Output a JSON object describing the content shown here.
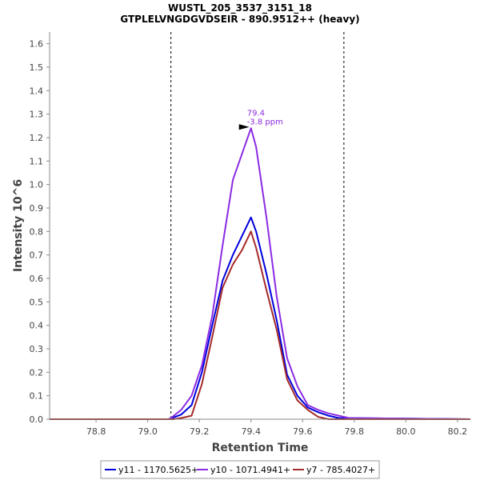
{
  "chart_data": {
    "type": "line",
    "title": "WUSTL_205_3537_3151_18",
    "subtitle": "GTPLELVNGDGVDSEIR - 890.9512++ (heavy)",
    "xlabel": "Retention Time",
    "ylabel": "Intensity 10^6",
    "xlim": [
      78.62,
      80.25
    ],
    "ylim": [
      0,
      1.65
    ],
    "xticks": [
      "78.8",
      "79.0",
      "79.2",
      "79.4",
      "79.6",
      "79.8",
      "80.0",
      "80.2"
    ],
    "yticks": [
      "0.0",
      "0.1",
      "0.2",
      "0.3",
      "0.4",
      "0.5",
      "0.6",
      "0.7",
      "0.8",
      "0.9",
      "1.0",
      "1.1",
      "1.2",
      "1.3",
      "1.4",
      "1.5",
      "1.6"
    ],
    "grid": false,
    "legend_position": "bottom",
    "boundaries": [
      79.09,
      79.76
    ],
    "annotation": {
      "line1": "79.4",
      "line2": "-3.8 ppm",
      "x": 79.4,
      "y": 1.24,
      "color": "#8B2BE2"
    },
    "series": [
      {
        "name": "y11 - 1170.5625+",
        "color": "#0000DD",
        "x": [
          78.62,
          79.08,
          79.09,
          79.13,
          79.17,
          79.21,
          79.25,
          79.29,
          79.33,
          79.365,
          79.4,
          79.42,
          79.46,
          79.5,
          79.54,
          79.58,
          79.62,
          79.66,
          79.7,
          79.74,
          80.25
        ],
        "y": [
          0.0,
          0.0,
          0.003,
          0.02,
          0.06,
          0.2,
          0.4,
          0.59,
          0.7,
          0.78,
          0.86,
          0.8,
          0.62,
          0.42,
          0.19,
          0.1,
          0.05,
          0.03,
          0.015,
          0.005,
          0.0
        ]
      },
      {
        "name": "y10 - 1071.4941+",
        "color": "#8B2BE2",
        "x": [
          78.62,
          79.08,
          79.09,
          79.13,
          79.17,
          79.21,
          79.25,
          79.29,
          79.33,
          79.365,
          79.4,
          79.42,
          79.46,
          79.5,
          79.54,
          79.58,
          79.62,
          79.66,
          79.7,
          79.74,
          79.78,
          80.25
        ],
        "y": [
          0.0,
          0.0,
          0.005,
          0.04,
          0.1,
          0.23,
          0.44,
          0.74,
          1.02,
          1.13,
          1.24,
          1.16,
          0.86,
          0.52,
          0.26,
          0.14,
          0.06,
          0.04,
          0.025,
          0.015,
          0.005,
          0.0
        ]
      },
      {
        "name": "y7 - 785.4027+",
        "color": "#A52A2A",
        "x": [
          78.62,
          79.1,
          79.13,
          79.17,
          79.21,
          79.25,
          79.29,
          79.33,
          79.365,
          79.4,
          79.42,
          79.46,
          79.5,
          79.54,
          79.58,
          79.62,
          79.66,
          79.7,
          80.25
        ],
        "y": [
          0.0,
          0.0,
          0.005,
          0.015,
          0.15,
          0.35,
          0.56,
          0.66,
          0.72,
          0.8,
          0.73,
          0.55,
          0.38,
          0.17,
          0.08,
          0.04,
          0.01,
          0.0,
          0.0
        ]
      }
    ]
  }
}
